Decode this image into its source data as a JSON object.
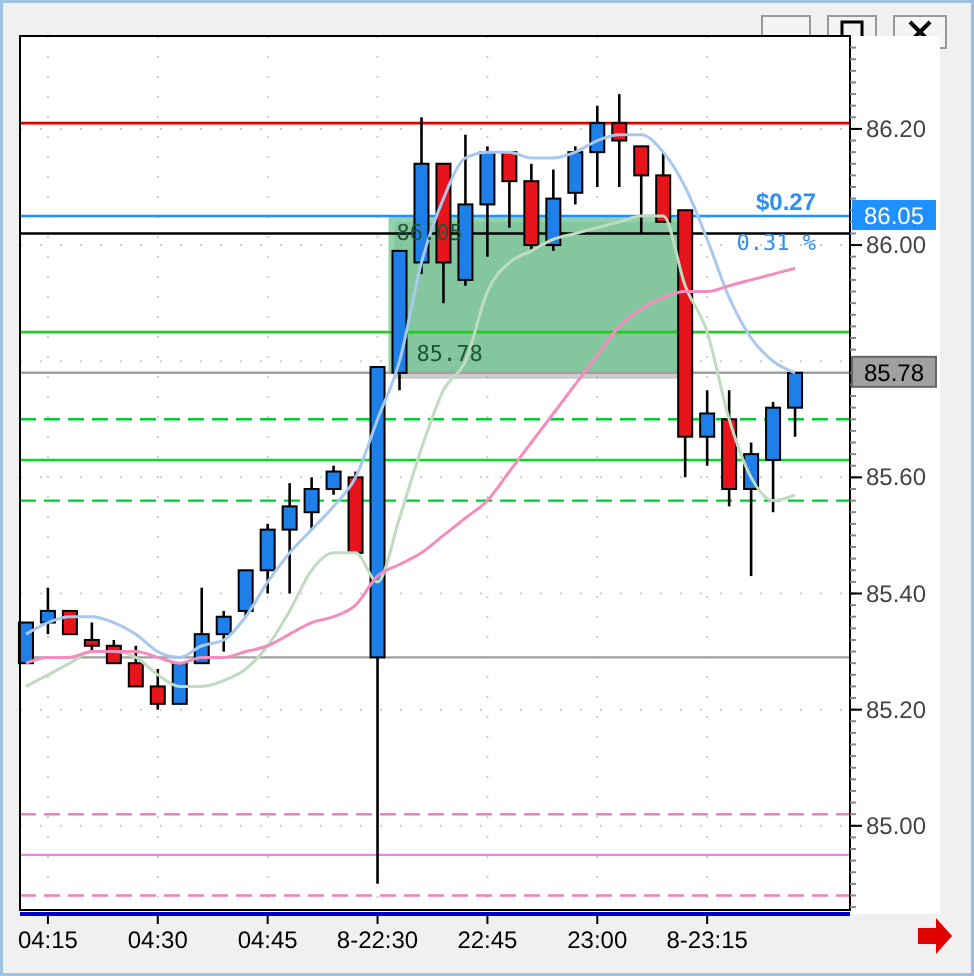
{
  "chart_data": {
    "type": "candlestick",
    "categories": [
      null,
      "04:15",
      null,
      null,
      null,
      null,
      "04:30",
      null,
      null,
      null,
      null,
      "04:45",
      null,
      null,
      null,
      null,
      "8-22:30",
      null,
      null,
      null,
      null,
      "22:45",
      null,
      null,
      null,
      null,
      "23:00",
      null,
      null,
      null,
      null,
      "8-23:15",
      null,
      null,
      null,
      null
    ],
    "series": [
      {
        "type": "line",
        "color": "#a9c8ee",
        "values": [
          85.33,
          85.35,
          85.36,
          85.36,
          85.35,
          85.33,
          85.3,
          85.29,
          85.31,
          85.32,
          85.36,
          85.42,
          85.47,
          85.51,
          85.55,
          85.6,
          85.7,
          85.8,
          85.97,
          86.08,
          86.15,
          86.16,
          86.16,
          86.15,
          86.15,
          86.16,
          86.18,
          86.19,
          86.19,
          86.16,
          86.1,
          86.01,
          85.91,
          85.84,
          85.8,
          85.78
        ]
      },
      {
        "type": "line",
        "color": "#bfdcc0",
        "values": [
          85.24,
          85.26,
          85.28,
          85.3,
          85.3,
          85.29,
          85.26,
          85.24,
          85.24,
          85.25,
          85.27,
          85.31,
          85.37,
          85.44,
          85.47,
          85.47,
          85.42,
          85.53,
          85.65,
          85.75,
          85.8,
          85.92,
          85.97,
          85.99,
          86.01,
          86.02,
          86.03,
          86.04,
          86.05,
          86.05,
          85.93,
          85.85,
          85.7,
          85.6,
          85.56,
          85.57
        ]
      },
      {
        "type": "line",
        "color": "#f58cc0",
        "values": [
          85.28,
          85.29,
          85.29,
          85.3,
          85.3,
          85.3,
          85.29,
          85.28,
          85.29,
          85.29,
          85.3,
          85.31,
          85.33,
          85.35,
          85.36,
          85.38,
          85.43,
          85.45,
          85.47,
          85.5,
          85.53,
          85.56,
          85.61,
          85.66,
          85.71,
          85.76,
          85.81,
          85.86,
          85.89,
          85.91,
          85.92,
          85.92,
          85.93,
          85.94,
          85.95,
          85.96
        ]
      },
      {
        "ohlc": [
          [
            85.28,
            85.35,
            85.28,
            85.35
          ],
          [
            85.35,
            85.41,
            85.33,
            85.37
          ],
          [
            85.37,
            85.37,
            85.33,
            85.33
          ],
          [
            85.32,
            85.35,
            85.3,
            85.31
          ],
          [
            85.31,
            85.32,
            85.28,
            85.28
          ],
          [
            85.28,
            85.31,
            85.24,
            85.24
          ],
          [
            85.24,
            85.27,
            85.2,
            85.21
          ],
          [
            85.21,
            85.28,
            85.21,
            85.28
          ],
          [
            85.28,
            85.41,
            85.28,
            85.33
          ],
          [
            85.33,
            85.37,
            85.3,
            85.36
          ],
          [
            85.37,
            85.44,
            85.36,
            85.44
          ],
          [
            85.44,
            85.52,
            85.4,
            85.51
          ],
          [
            85.51,
            85.59,
            85.4,
            85.55
          ],
          [
            85.54,
            85.6,
            85.51,
            85.58
          ],
          [
            85.58,
            85.62,
            85.57,
            85.61
          ],
          [
            85.6,
            85.61,
            85.47,
            85.47
          ],
          [
            85.29,
            85.79,
            84.9,
            85.79
          ],
          [
            85.78,
            85.99,
            85.75,
            85.99
          ],
          [
            85.97,
            86.22,
            85.95,
            86.14
          ],
          [
            86.14,
            86.14,
            85.9,
            85.97
          ],
          [
            85.94,
            86.19,
            85.93,
            86.07
          ],
          [
            86.07,
            86.17,
            85.98,
            86.16
          ],
          [
            86.16,
            86.16,
            86.03,
            86.11
          ],
          [
            86.11,
            86.14,
            85.99,
            86.0
          ],
          [
            86.0,
            86.13,
            85.99,
            86.08
          ],
          [
            86.09,
            86.17,
            86.07,
            86.16
          ],
          [
            86.16,
            86.24,
            86.1,
            86.21
          ],
          [
            86.21,
            86.26,
            86.1,
            86.18
          ],
          [
            86.17,
            86.17,
            86.02,
            86.12
          ],
          [
            86.12,
            86.16,
            86.04,
            86.04
          ],
          [
            86.06,
            86.06,
            85.6,
            85.67
          ],
          [
            85.67,
            85.75,
            85.62,
            85.71
          ],
          [
            85.7,
            85.75,
            85.55,
            85.58
          ],
          [
            85.58,
            85.66,
            85.43,
            85.64
          ],
          [
            85.63,
            85.73,
            85.54,
            85.72
          ],
          [
            85.72,
            85.78,
            85.67,
            85.78
          ]
        ],
        "colors": [
          "#1f7fe8",
          "#1f7fe8",
          "#e8141b",
          "#e8141b",
          "#e8141b",
          "#e8141b",
          "#e8141b",
          "#1f7fe8",
          "#1f7fe8",
          "#1f7fe8",
          "#1f7fe8",
          "#1f7fe8",
          "#1f7fe8",
          "#1f7fe8",
          "#1f7fe8",
          "#e8141b",
          "#1f7fe8",
          "#1f7fe8",
          "#1f7fe8",
          "#e8141b",
          "#1f7fe8",
          "#1f7fe8",
          "#e8141b",
          "#e8141b",
          "#1f7fe8",
          "#1f7fe8",
          "#1f7fe8",
          "#e8141b",
          "#e8141b",
          "#e8141b",
          "#e8141b",
          "#1f7fe8",
          "#e8141b",
          "#1f7fe8",
          "#1f7fe8",
          "#1f7fe8"
        ]
      }
    ],
    "ylim": [
      84.855,
      86.36
    ],
    "yticks": [
      {
        "value": 86.2,
        "label": "86.20"
      },
      {
        "value": 86.0,
        "label": "86.00"
      },
      {
        "value": 85.8,
        "label": null
      },
      {
        "value": 85.6,
        "label": "85.60"
      },
      {
        "value": 85.4,
        "label": "85.40"
      },
      {
        "value": 85.2,
        "label": "85.20"
      },
      {
        "value": 85.0,
        "label": "85.00"
      }
    ],
    "grid": true,
    "ref_lines": [
      {
        "axis": "y",
        "value": 86.21,
        "color": "#e00000",
        "line_style": "solid"
      },
      {
        "axis": "y",
        "value": 86.02,
        "color": "#000000",
        "line_style": "solid"
      },
      {
        "axis": "y",
        "value": 86.05,
        "color": "#1e90ff",
        "line_style": "solid",
        "label": "86.05"
      },
      {
        "axis": "y",
        "value": 85.85,
        "color": "#22cc22",
        "line_style": "solid"
      },
      {
        "axis": "y",
        "value": 85.78,
        "color": "#a0a0a0",
        "line_style": "solid",
        "label": "85.78"
      },
      {
        "axis": "y",
        "value": 85.7,
        "color": "#00cc33",
        "line_style": "dashed"
      },
      {
        "axis": "y",
        "value": 85.63,
        "color": "#00dd22",
        "line_style": "solid"
      },
      {
        "axis": "y",
        "value": 85.56,
        "color": "#00cc33",
        "line_style": "dashed"
      },
      {
        "axis": "y",
        "value": 85.29,
        "color": "#a0a0a0",
        "line_style": "solid"
      },
      {
        "axis": "y",
        "value": 85.02,
        "color": "#f080c0",
        "line_style": "dashed"
      },
      {
        "axis": "y",
        "value": 84.95,
        "color": "#f080f0",
        "line_style": "solid"
      },
      {
        "axis": "y",
        "value": 84.88,
        "color": "#f080c0",
        "line_style": "dashed"
      }
    ],
    "annotations": [
      {
        "text": "86.05",
        "y": 86.05
      },
      {
        "text": "85.78",
        "y": 85.78
      },
      {
        "text": "$0.27",
        "y": 86.05
      },
      {
        "text": "0.31 %",
        "y": 86.05
      }
    ]
  }
}
